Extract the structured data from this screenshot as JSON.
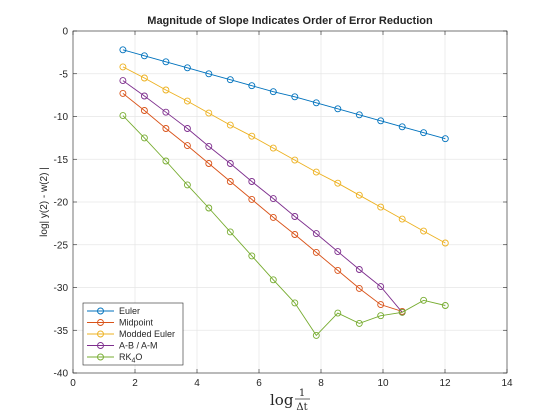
{
  "chart_data": {
    "type": "line",
    "title": "Magnitude of Slope Indicates Order of Error Reduction",
    "ylabel": "log| y(2) - w(2) |",
    "xlabel": {
      "prefix": "log",
      "numerator": "1",
      "denominator": "Δt"
    },
    "xlim": [
      0,
      14
    ],
    "ylim": [
      -40,
      0
    ],
    "xticks": [
      0,
      2,
      4,
      6,
      8,
      10,
      12,
      14
    ],
    "yticks": [
      0,
      -5,
      -10,
      -15,
      -20,
      -25,
      -30,
      -35,
      -40
    ],
    "grid": true,
    "legend_position": "bottom-left",
    "x": [
      1.609,
      2.303,
      2.996,
      3.689,
      4.382,
      5.075,
      5.768,
      6.461,
      7.155,
      7.848,
      8.541,
      9.234,
      9.927,
      10.62,
      11.31,
      12.01
    ],
    "series": [
      {
        "name": "Euler",
        "color": "#0072bd",
        "values": [
          -2.2,
          -2.9,
          -3.6,
          -4.3,
          -5.0,
          -5.7,
          -6.4,
          -7.1,
          -7.7,
          -8.4,
          -9.1,
          -9.8,
          -10.5,
          -11.2,
          -11.9,
          -12.6
        ]
      },
      {
        "name": "Midpoint",
        "color": "#d95319",
        "values": [
          -7.3,
          -9.3,
          -11.4,
          -13.4,
          -15.5,
          -17.6,
          -19.7,
          -21.8,
          -23.8,
          -25.9,
          -28.0,
          -30.1,
          -32.0,
          -32.8,
          null,
          null
        ]
      },
      {
        "name": "Modded Euler",
        "color": "#edb120",
        "values": [
          -4.2,
          -5.5,
          -6.9,
          -8.2,
          -9.6,
          -11.0,
          -12.3,
          -13.7,
          -15.1,
          -16.5,
          -17.8,
          -19.2,
          -20.6,
          -22.0,
          -23.4,
          -24.8
        ]
      },
      {
        "name": "A-B / A-M",
        "color": "#7e2f8e",
        "values": [
          -5.8,
          -7.6,
          -9.5,
          -11.4,
          -13.5,
          -15.5,
          -17.6,
          -19.6,
          -21.7,
          -23.7,
          -25.8,
          -27.9,
          -29.9,
          -32.9,
          null,
          null
        ]
      },
      {
        "name": "RK",
        "name_sub": "4",
        "name_suffix": "O",
        "color": "#77ac30",
        "values": [
          -9.9,
          -12.5,
          -15.2,
          -18.0,
          -20.7,
          -23.5,
          -26.3,
          -29.1,
          -31.8,
          -35.6,
          -33.0,
          -34.2,
          -33.3,
          -32.9,
          -31.5,
          -32.1
        ]
      }
    ]
  }
}
